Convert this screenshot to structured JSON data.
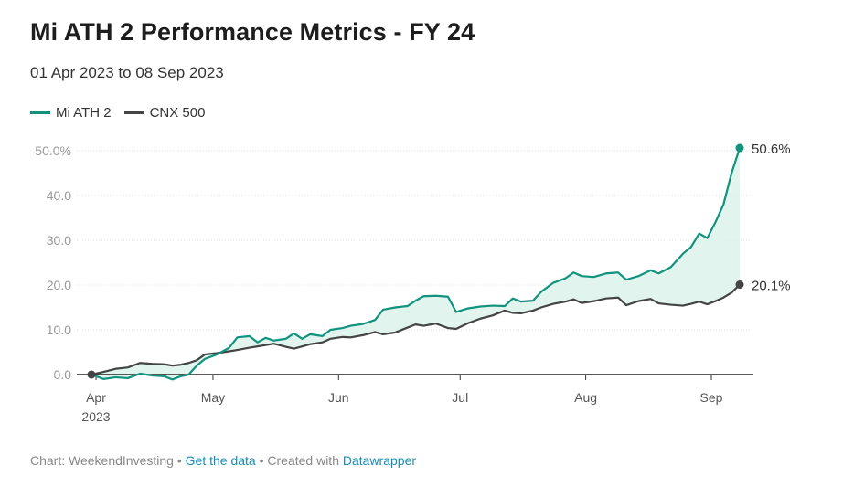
{
  "title": "Mi ATH 2 Performance Metrics - FY 24",
  "subtitle": "01 Apr 2023 to 08 Sep 2023",
  "footer": {
    "chart_by": "Chart: WeekendInvesting",
    "sep1": " • ",
    "get_data": "Get the data",
    "sep2": " • Created with ",
    "tool": "Datawrapper"
  },
  "colors": {
    "mi": "#11937f",
    "cnx": "#444444",
    "fill": "#d9f3ea",
    "axis": "#222222"
  },
  "chart_data": {
    "type": "line",
    "title": "Mi ATH 2 Performance Metrics - FY 24",
    "subtitle": "01 Apr 2023 to 08 Sep 2023",
    "xlabel": "",
    "ylabel": "",
    "x_range": [
      "2023-04-01",
      "2023-09-08"
    ],
    "ylim": [
      0,
      50
    ],
    "y_ticks": [
      {
        "value": 0,
        "label": "0.0"
      },
      {
        "value": 10,
        "label": "10.0"
      },
      {
        "value": 20,
        "label": "20.0"
      },
      {
        "value": 30,
        "label": "30.0"
      },
      {
        "value": 40,
        "label": "40.0"
      },
      {
        "value": 50,
        "label": "50.0%"
      }
    ],
    "x_ticks": [
      {
        "date": "2023-04-01",
        "label": "Apr",
        "sublabel": "2023"
      },
      {
        "date": "2023-05-01",
        "label": "May",
        "sublabel": ""
      },
      {
        "date": "2023-06-01",
        "label": "Jun",
        "sublabel": ""
      },
      {
        "date": "2023-07-01",
        "label": "Jul",
        "sublabel": ""
      },
      {
        "date": "2023-08-01",
        "label": "Aug",
        "sublabel": ""
      },
      {
        "date": "2023-09-01",
        "label": "Sep",
        "sublabel": ""
      }
    ],
    "legend_position": "top-left",
    "grid": true,
    "series": [
      {
        "name": "Mi ATH 2",
        "color": "#11937f",
        "end_label": "50.6%",
        "points": [
          [
            "2023-04-01",
            0.0
          ],
          [
            "2023-04-04",
            -1.0
          ],
          [
            "2023-04-07",
            -0.6
          ],
          [
            "2023-04-10",
            -0.8
          ],
          [
            "2023-04-13",
            0.2
          ],
          [
            "2023-04-16",
            -0.2
          ],
          [
            "2023-04-19",
            -0.4
          ],
          [
            "2023-04-21",
            -1.1
          ],
          [
            "2023-04-23",
            -0.4
          ],
          [
            "2023-04-25",
            0.0
          ],
          [
            "2023-04-27",
            2.0
          ],
          [
            "2023-04-29",
            3.5
          ],
          [
            "2023-05-02",
            4.5
          ],
          [
            "2023-05-05",
            6.0
          ],
          [
            "2023-05-07",
            8.3
          ],
          [
            "2023-05-10",
            8.6
          ],
          [
            "2023-05-12",
            7.2
          ],
          [
            "2023-05-14",
            8.2
          ],
          [
            "2023-05-16",
            7.6
          ],
          [
            "2023-05-19",
            8.0
          ],
          [
            "2023-05-21",
            9.2
          ],
          [
            "2023-05-23",
            8.0
          ],
          [
            "2023-05-25",
            9.0
          ],
          [
            "2023-05-28",
            8.6
          ],
          [
            "2023-05-30",
            10.0
          ],
          [
            "2023-06-02",
            10.4
          ],
          [
            "2023-06-04",
            10.9
          ],
          [
            "2023-06-07",
            11.3
          ],
          [
            "2023-06-10",
            12.2
          ],
          [
            "2023-06-12",
            14.5
          ],
          [
            "2023-06-15",
            15.0
          ],
          [
            "2023-06-18",
            15.3
          ],
          [
            "2023-06-20",
            16.5
          ],
          [
            "2023-06-22",
            17.5
          ],
          [
            "2023-06-25",
            17.6
          ],
          [
            "2023-06-28",
            17.4
          ],
          [
            "2023-06-30",
            14.0
          ],
          [
            "2023-07-03",
            14.8
          ],
          [
            "2023-07-06",
            15.2
          ],
          [
            "2023-07-09",
            15.4
          ],
          [
            "2023-07-12",
            15.3
          ],
          [
            "2023-07-14",
            17.0
          ],
          [
            "2023-07-16",
            16.3
          ],
          [
            "2023-07-19",
            16.5
          ],
          [
            "2023-07-21",
            18.5
          ],
          [
            "2023-07-24",
            20.5
          ],
          [
            "2023-07-27",
            21.5
          ],
          [
            "2023-07-29",
            22.8
          ],
          [
            "2023-07-31",
            22.0
          ],
          [
            "2023-08-03",
            21.8
          ],
          [
            "2023-08-06",
            22.6
          ],
          [
            "2023-08-09",
            22.8
          ],
          [
            "2023-08-11",
            21.2
          ],
          [
            "2023-08-14",
            22.0
          ],
          [
            "2023-08-17",
            23.3
          ],
          [
            "2023-08-19",
            22.6
          ],
          [
            "2023-08-22",
            24.0
          ],
          [
            "2023-08-25",
            27.0
          ],
          [
            "2023-08-27",
            28.5
          ],
          [
            "2023-08-29",
            31.5
          ],
          [
            "2023-08-31",
            30.5
          ],
          [
            "2023-09-02",
            34.0
          ],
          [
            "2023-09-04",
            38.0
          ],
          [
            "2023-09-06",
            45.0
          ],
          [
            "2023-09-08",
            50.6
          ]
        ]
      },
      {
        "name": "CNX 500",
        "color": "#444444",
        "end_label": "20.1%",
        "points": [
          [
            "2023-04-01",
            0.0
          ],
          [
            "2023-04-04",
            0.6
          ],
          [
            "2023-04-07",
            1.3
          ],
          [
            "2023-04-10",
            1.6
          ],
          [
            "2023-04-13",
            2.6
          ],
          [
            "2023-04-16",
            2.4
          ],
          [
            "2023-04-19",
            2.3
          ],
          [
            "2023-04-21",
            2.0
          ],
          [
            "2023-04-23",
            2.2
          ],
          [
            "2023-04-25",
            2.6
          ],
          [
            "2023-04-27",
            3.2
          ],
          [
            "2023-04-29",
            4.5
          ],
          [
            "2023-05-02",
            4.8
          ],
          [
            "2023-05-05",
            5.2
          ],
          [
            "2023-05-07",
            5.5
          ],
          [
            "2023-05-10",
            6.0
          ],
          [
            "2023-05-12",
            6.3
          ],
          [
            "2023-05-14",
            6.6
          ],
          [
            "2023-05-16",
            6.9
          ],
          [
            "2023-05-19",
            6.2
          ],
          [
            "2023-05-21",
            5.8
          ],
          [
            "2023-05-23",
            6.3
          ],
          [
            "2023-05-25",
            6.8
          ],
          [
            "2023-05-28",
            7.2
          ],
          [
            "2023-05-30",
            8.0
          ],
          [
            "2023-06-02",
            8.4
          ],
          [
            "2023-06-04",
            8.3
          ],
          [
            "2023-06-07",
            8.8
          ],
          [
            "2023-06-10",
            9.5
          ],
          [
            "2023-06-12",
            9.0
          ],
          [
            "2023-06-15",
            9.4
          ],
          [
            "2023-06-18",
            10.5
          ],
          [
            "2023-06-20",
            11.2
          ],
          [
            "2023-06-22",
            10.9
          ],
          [
            "2023-06-25",
            11.4
          ],
          [
            "2023-06-28",
            10.4
          ],
          [
            "2023-06-30",
            10.2
          ],
          [
            "2023-07-03",
            11.5
          ],
          [
            "2023-07-06",
            12.5
          ],
          [
            "2023-07-09",
            13.2
          ],
          [
            "2023-07-12",
            14.3
          ],
          [
            "2023-07-14",
            13.8
          ],
          [
            "2023-07-16",
            13.7
          ],
          [
            "2023-07-19",
            14.3
          ],
          [
            "2023-07-21",
            15.0
          ],
          [
            "2023-07-24",
            15.8
          ],
          [
            "2023-07-27",
            16.3
          ],
          [
            "2023-07-29",
            16.8
          ],
          [
            "2023-07-31",
            16.0
          ],
          [
            "2023-08-03",
            16.4
          ],
          [
            "2023-08-06",
            17.0
          ],
          [
            "2023-08-09",
            17.2
          ],
          [
            "2023-08-11",
            15.5
          ],
          [
            "2023-08-14",
            16.4
          ],
          [
            "2023-08-17",
            16.9
          ],
          [
            "2023-08-19",
            15.9
          ],
          [
            "2023-08-22",
            15.6
          ],
          [
            "2023-08-25",
            15.4
          ],
          [
            "2023-08-27",
            15.8
          ],
          [
            "2023-08-29",
            16.3
          ],
          [
            "2023-08-31",
            15.7
          ],
          [
            "2023-09-02",
            16.4
          ],
          [
            "2023-09-04",
            17.2
          ],
          [
            "2023-09-06",
            18.3
          ],
          [
            "2023-09-08",
            20.1
          ]
        ]
      }
    ]
  }
}
